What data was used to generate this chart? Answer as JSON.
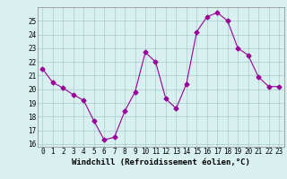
{
  "x": [
    0,
    1,
    2,
    3,
    4,
    5,
    6,
    7,
    8,
    9,
    10,
    11,
    12,
    13,
    14,
    15,
    16,
    17,
    18,
    19,
    20,
    21,
    22,
    23
  ],
  "y": [
    21.5,
    20.5,
    20.1,
    19.6,
    19.2,
    17.7,
    16.3,
    16.5,
    18.4,
    19.8,
    22.7,
    22.0,
    19.3,
    18.6,
    20.4,
    24.2,
    25.3,
    25.6,
    25.0,
    23.0,
    22.5,
    20.9,
    20.2,
    20.2
  ],
  "line_color": "#990099",
  "marker": "D",
  "marker_size": 2.5,
  "bg_color": "#d8f0f0",
  "grid_color": "#aacccc",
  "xlabel": "Windchill (Refroidissement éolien,°C)",
  "ylim": [
    15.8,
    26.0
  ],
  "xlim": [
    -0.5,
    23.5
  ],
  "yticks": [
    16,
    17,
    18,
    19,
    20,
    21,
    22,
    23,
    24,
    25
  ],
  "xticks": [
    0,
    1,
    2,
    3,
    4,
    5,
    6,
    7,
    8,
    9,
    10,
    11,
    12,
    13,
    14,
    15,
    16,
    17,
    18,
    19,
    20,
    21,
    22,
    23
  ],
  "tick_fontsize": 5.5,
  "xlabel_fontsize": 6.5
}
